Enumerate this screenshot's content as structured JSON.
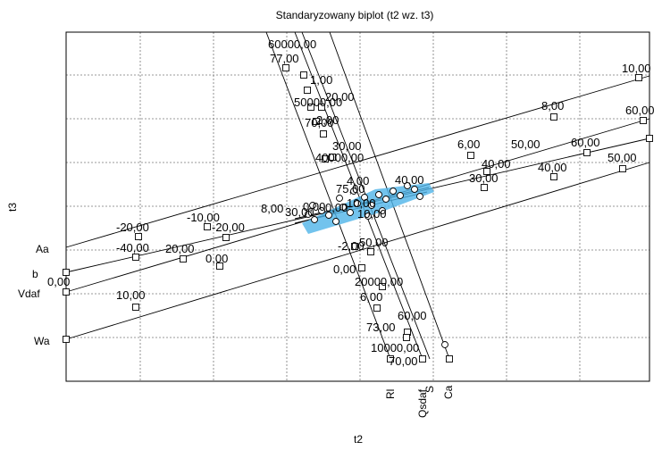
{
  "chart_data": {
    "type": "scatter",
    "title": "Standaryzowany biplot (t2 wz. t3)",
    "xlabel": "t2",
    "ylabel": "t3",
    "grid": true,
    "variable_labels_left": [
      "Aa",
      "b",
      "Vdaf",
      "Wa"
    ],
    "variable_labels_bottom": [
      "Rl",
      "Qsdaf",
      "S",
      "Ca"
    ],
    "tick_labels": [
      "10,00",
      "8,00",
      "6,00",
      "60,00",
      "50,00",
      "60,00",
      "40,00",
      "50,00",
      "40,00",
      "30,00",
      "60000,00",
      "77,00",
      "1,00",
      "20,00",
      "50000,00",
      "70,00",
      "2,00",
      "30,00",
      "40000,00",
      "4,00",
      "40,00",
      "75,00",
      "10,00",
      "-20,00",
      "-10,00",
      "-20,00",
      "-40,00",
      "20,00",
      "0,00",
      "0,00",
      "10,00",
      "-2,00",
      "50,00",
      "0,00",
      "20000,00",
      "6,00",
      "60,00",
      "73,00",
      "10000,00",
      "70,00",
      "8,00",
      "0,00",
      "0,00",
      "30,00",
      "10,00"
    ],
    "extra_points": [
      {
        "label": "○"
      }
    ]
  }
}
